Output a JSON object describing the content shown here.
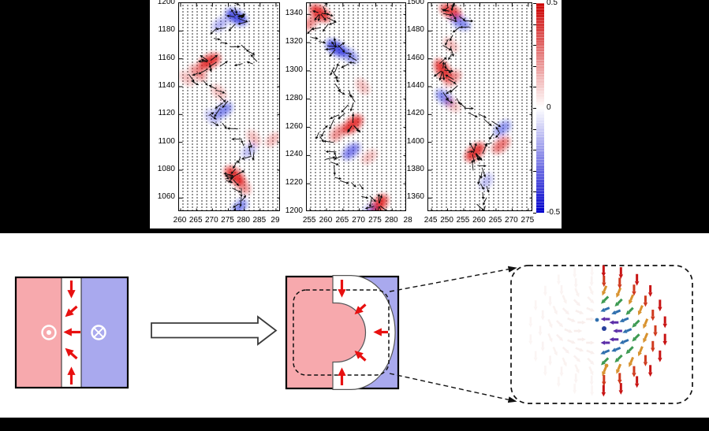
{
  "colors": {
    "banner": "#000000",
    "heat_red": "#dd1414",
    "heat_blue": "#1a22dd",
    "quiver_arrow": "#0d0d0d",
    "domain_pink": "#f7a9ad",
    "domain_blue": "#a9a9ee",
    "wall_white": "#ffffff",
    "arrow_red": "#e81010",
    "outline_dark": "#3a3a3a"
  },
  "chart_data": {
    "type": "quiver-heatmap",
    "title": "",
    "grid": false,
    "panels": [
      {
        "x_range": [
          259.5,
          291.5
        ],
        "y_range": [
          1050,
          1200
        ],
        "x_ticks": [
          {
            "v": 260,
            "l": "260"
          },
          {
            "v": 265,
            "l": "265"
          },
          {
            "v": 270,
            "l": "270"
          },
          {
            "v": 275,
            "l": "275"
          },
          {
            "v": 280,
            "l": "280"
          },
          {
            "v": 285,
            "l": "285"
          },
          {
            "v": 290,
            "l": "29"
          }
        ],
        "y_ticks": [
          {
            "v": 1060,
            "l": "1060"
          },
          {
            "v": 1080,
            "l": "1080"
          },
          {
            "v": 1100,
            "l": "1100"
          },
          {
            "v": 1120,
            "l": "1120"
          },
          {
            "v": 1140,
            "l": "1140"
          },
          {
            "v": 1160,
            "l": "1160"
          },
          {
            "v": 1180,
            "l": "1180"
          },
          {
            "v": 1200,
            "l": "1200"
          }
        ],
        "wall_path": [
          [
            276,
            1200
          ],
          [
            278,
            1193
          ],
          [
            281,
            1189
          ],
          [
            274,
            1183
          ],
          [
            270,
            1176
          ],
          [
            275,
            1170
          ],
          [
            282,
            1166
          ],
          [
            284,
            1160
          ],
          [
            276,
            1157
          ],
          [
            268,
            1155
          ],
          [
            263,
            1149
          ],
          [
            266,
            1143
          ],
          [
            271,
            1137
          ],
          [
            274,
            1130
          ],
          [
            272,
            1124
          ],
          [
            269,
            1119
          ],
          [
            272,
            1112
          ],
          [
            277,
            1106
          ],
          [
            281,
            1100
          ],
          [
            283,
            1094
          ],
          [
            280,
            1087
          ],
          [
            277,
            1081
          ],
          [
            275,
            1075
          ],
          [
            278,
            1069
          ],
          [
            280,
            1063
          ],
          [
            278,
            1056
          ],
          [
            276,
            1050
          ]
        ],
        "blobs": [
          {
            "x": 277.5,
            "y": 1190,
            "c": "b",
            "i": 0.8
          },
          {
            "x": 272.5,
            "y": 1185,
            "c": "b",
            "i": 0.35
          },
          {
            "x": 269,
            "y": 1158,
            "c": "r",
            "i": 0.85
          },
          {
            "x": 265.5,
            "y": 1150,
            "c": "r",
            "i": 0.5
          },
          {
            "x": 262,
            "y": 1146,
            "c": "r",
            "i": 0.3
          },
          {
            "x": 272,
            "y": 1136,
            "c": "r",
            "i": 0.3
          },
          {
            "x": 273.5,
            "y": 1123,
            "c": "b",
            "i": 0.55
          },
          {
            "x": 270,
            "y": 1118,
            "c": "b",
            "i": 0.3
          },
          {
            "x": 283,
            "y": 1103,
            "c": "r",
            "i": 0.3
          },
          {
            "x": 289,
            "y": 1102,
            "c": "r",
            "i": 0.28
          },
          {
            "x": 281.5,
            "y": 1094,
            "c": "b",
            "i": 0.3
          },
          {
            "x": 277,
            "y": 1076,
            "c": "r",
            "i": 0.85
          },
          {
            "x": 279.5,
            "y": 1069,
            "c": "r",
            "i": 0.5
          },
          {
            "x": 278.5,
            "y": 1053,
            "c": "b",
            "i": 0.55
          }
        ]
      },
      {
        "x_range": [
          254,
          284.5
        ],
        "y_range": [
          1200,
          1348
        ],
        "x_ticks": [
          {
            "v": 255,
            "l": "255"
          },
          {
            "v": 260,
            "l": "260"
          },
          {
            "v": 265,
            "l": "265"
          },
          {
            "v": 270,
            "l": "270"
          },
          {
            "v": 275,
            "l": "275"
          },
          {
            "v": 280,
            "l": "280"
          },
          {
            "v": 285,
            "l": "28"
          }
        ],
        "y_ticks": [
          {
            "v": 1200,
            "l": "1200"
          },
          {
            "v": 1220,
            "l": "1220"
          },
          {
            "v": 1240,
            "l": "1240"
          },
          {
            "v": 1260,
            "l": "1260"
          },
          {
            "v": 1280,
            "l": "1280"
          },
          {
            "v": 1300,
            "l": "1300"
          },
          {
            "v": 1320,
            "l": "1320"
          },
          {
            "v": 1340,
            "l": "1340"
          }
        ],
        "wall_path": [
          [
            258,
            1348
          ],
          [
            260,
            1342
          ],
          [
            263,
            1337
          ],
          [
            258,
            1331
          ],
          [
            255,
            1325
          ],
          [
            260,
            1319
          ],
          [
            266,
            1314
          ],
          [
            269,
            1309
          ],
          [
            264,
            1304
          ],
          [
            261,
            1298
          ],
          [
            263,
            1291
          ],
          [
            266,
            1285
          ],
          [
            268,
            1278
          ],
          [
            265,
            1271
          ],
          [
            262,
            1265
          ],
          [
            259,
            1258
          ],
          [
            257,
            1252
          ],
          [
            261,
            1246
          ],
          [
            264,
            1241
          ],
          [
            261,
            1235
          ],
          [
            263,
            1228
          ],
          [
            267,
            1221
          ],
          [
            271,
            1214
          ],
          [
            275,
            1207
          ],
          [
            273,
            1201
          ]
        ],
        "blobs": [
          {
            "x": 258,
            "y": 1341,
            "c": "r",
            "i": 0.85
          },
          {
            "x": 255,
            "y": 1334,
            "c": "r",
            "i": 0.5
          },
          {
            "x": 263,
            "y": 1316,
            "c": "b",
            "i": 0.8
          },
          {
            "x": 267,
            "y": 1311,
            "c": "b",
            "i": 0.5
          },
          {
            "x": 271,
            "y": 1289,
            "c": "r",
            "i": 0.3
          },
          {
            "x": 268,
            "y": 1262,
            "c": "r",
            "i": 0.85
          },
          {
            "x": 263.5,
            "y": 1256,
            "c": "r",
            "i": 0.5
          },
          {
            "x": 267.5,
            "y": 1243,
            "c": "b",
            "i": 0.6
          },
          {
            "x": 273,
            "y": 1239,
            "c": "r",
            "i": 0.3
          },
          {
            "x": 276,
            "y": 1205,
            "c": "r",
            "i": 0.85
          },
          {
            "x": 273,
            "y": 1200,
            "c": "b",
            "i": 0.4
          }
        ]
      },
      {
        "x_range": [
          244,
          276.5
        ],
        "y_range": [
          1350,
          1500
        ],
        "x_ticks": [
          {
            "v": 245,
            "l": "245"
          },
          {
            "v": 250,
            "l": "250"
          },
          {
            "v": 255,
            "l": "255"
          },
          {
            "v": 260,
            "l": "260"
          },
          {
            "v": 265,
            "l": "265"
          },
          {
            "v": 270,
            "l": "270"
          },
          {
            "v": 275,
            "l": "275"
          }
        ],
        "y_ticks": [
          {
            "v": 1360,
            "l": "1360"
          },
          {
            "v": 1380,
            "l": "1380"
          },
          {
            "v": 1400,
            "l": "1400"
          },
          {
            "v": 1420,
            "l": "1420"
          },
          {
            "v": 1440,
            "l": "1440"
          },
          {
            "v": 1460,
            "l": "1460"
          },
          {
            "v": 1480,
            "l": "1480"
          },
          {
            "v": 1500,
            "l": "1500"
          }
        ],
        "wall_path": [
          [
            251,
            1500
          ],
          [
            249,
            1494
          ],
          [
            253,
            1489
          ],
          [
            257,
            1484
          ],
          [
            252,
            1477
          ],
          [
            249,
            1470
          ],
          [
            252,
            1463
          ],
          [
            248,
            1456
          ],
          [
            250,
            1449
          ],
          [
            252,
            1442
          ],
          [
            249,
            1436
          ],
          [
            252,
            1430
          ],
          [
            255,
            1424
          ],
          [
            259,
            1419
          ],
          [
            264,
            1414
          ],
          [
            266,
            1408
          ],
          [
            263,
            1402
          ],
          [
            260,
            1396
          ],
          [
            257,
            1390
          ],
          [
            259,
            1383
          ],
          [
            262,
            1377
          ],
          [
            260,
            1370
          ],
          [
            262,
            1363
          ],
          [
            261,
            1356
          ],
          [
            262,
            1350
          ]
        ],
        "blobs": [
          {
            "x": 251,
            "y": 1494,
            "c": "r",
            "i": 0.8
          },
          {
            "x": 254,
            "y": 1486,
            "c": "b",
            "i": 0.55
          },
          {
            "x": 251,
            "y": 1470,
            "c": "r",
            "i": 0.28
          },
          {
            "x": 248.5,
            "y": 1452,
            "c": "r",
            "i": 0.85
          },
          {
            "x": 251.5,
            "y": 1446,
            "c": "r",
            "i": 0.5
          },
          {
            "x": 249,
            "y": 1432,
            "c": "b",
            "i": 0.55
          },
          {
            "x": 251.5,
            "y": 1427,
            "c": "r",
            "i": 0.3
          },
          {
            "x": 267,
            "y": 1410,
            "c": "b",
            "i": 0.5
          },
          {
            "x": 258.5,
            "y": 1393,
            "c": "r",
            "i": 0.85
          },
          {
            "x": 266.5,
            "y": 1398,
            "c": "r",
            "i": 0.6
          },
          {
            "x": 262,
            "y": 1372,
            "c": "b",
            "i": 0.3
          }
        ]
      }
    ],
    "colorbar": {
      "max": 0.5,
      "min": -0.5,
      "tick_step": 0.1,
      "labels": [
        {
          "v": 0.5,
          "l": "0.5"
        },
        {
          "v": 0,
          "l": "0"
        },
        {
          "v": -0.5,
          "l": "-0.5"
        }
      ],
      "color_top": "#cc0000",
      "color_mid": "#ffffff",
      "color_bottom": "#0000cc"
    }
  },
  "schematic": {
    "left_square": {
      "left_domain_color": "#f7a9ad",
      "right_domain_color": "#a9a9ee",
      "wall_color": "#ffffff",
      "arrow_color": "#e81010",
      "out_of_plane_symbol": "circled-dot",
      "into_plane_symbol": "circled-cross"
    },
    "transform_arrow": "hollow-right-arrow",
    "middle_square": {
      "wall_shape": "semicircular-bulge",
      "zoom_marker": "dashed-rounded-rect"
    },
    "zoom_box": {
      "content": "meron-vortex-arrow-fan",
      "ring_colors": [
        "#5b2da8",
        "#2f6fae",
        "#3d9a52",
        "#d8922e",
        "#cf3a1e",
        "#c81414"
      ],
      "ghost_color": "#eccfc9"
    }
  }
}
